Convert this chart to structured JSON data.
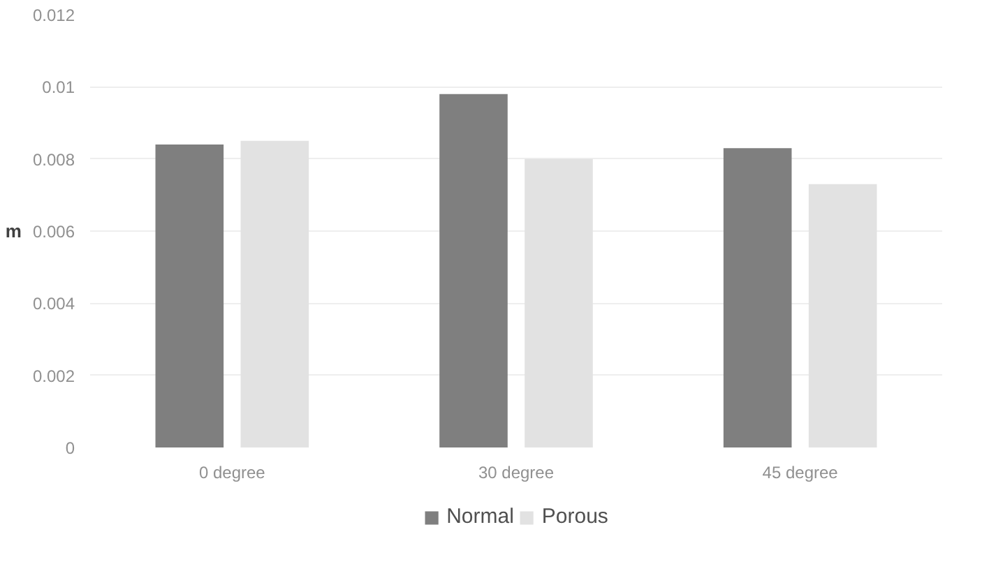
{
  "chart_data": {
    "type": "bar",
    "ylabel": "m",
    "categories": [
      "0 degree",
      "30 degree",
      "45 degree"
    ],
    "series": [
      {
        "name": "Normal",
        "color": "#7f7f7f",
        "values": [
          0.0084,
          0.0098,
          0.0083
        ]
      },
      {
        "name": "Porous",
        "color": "#e2e2e2",
        "values": [
          0.0085,
          0.008,
          0.0073
        ]
      }
    ],
    "ylim": [
      0,
      0.012
    ],
    "yticks": [
      0,
      {
        "value": 0.002,
        "label": "0.002"
      },
      {
        "value": 0.004,
        "label": "0.004"
      },
      {
        "value": 0.006,
        "label": "0.006"
      },
      {
        "value": 0.008,
        "label": "0.008"
      },
      {
        "value": 0.01,
        "label": "0.01"
      },
      {
        "value": 0.012,
        "label": "0.012"
      }
    ],
    "grid": "y",
    "legend": "bottom"
  }
}
